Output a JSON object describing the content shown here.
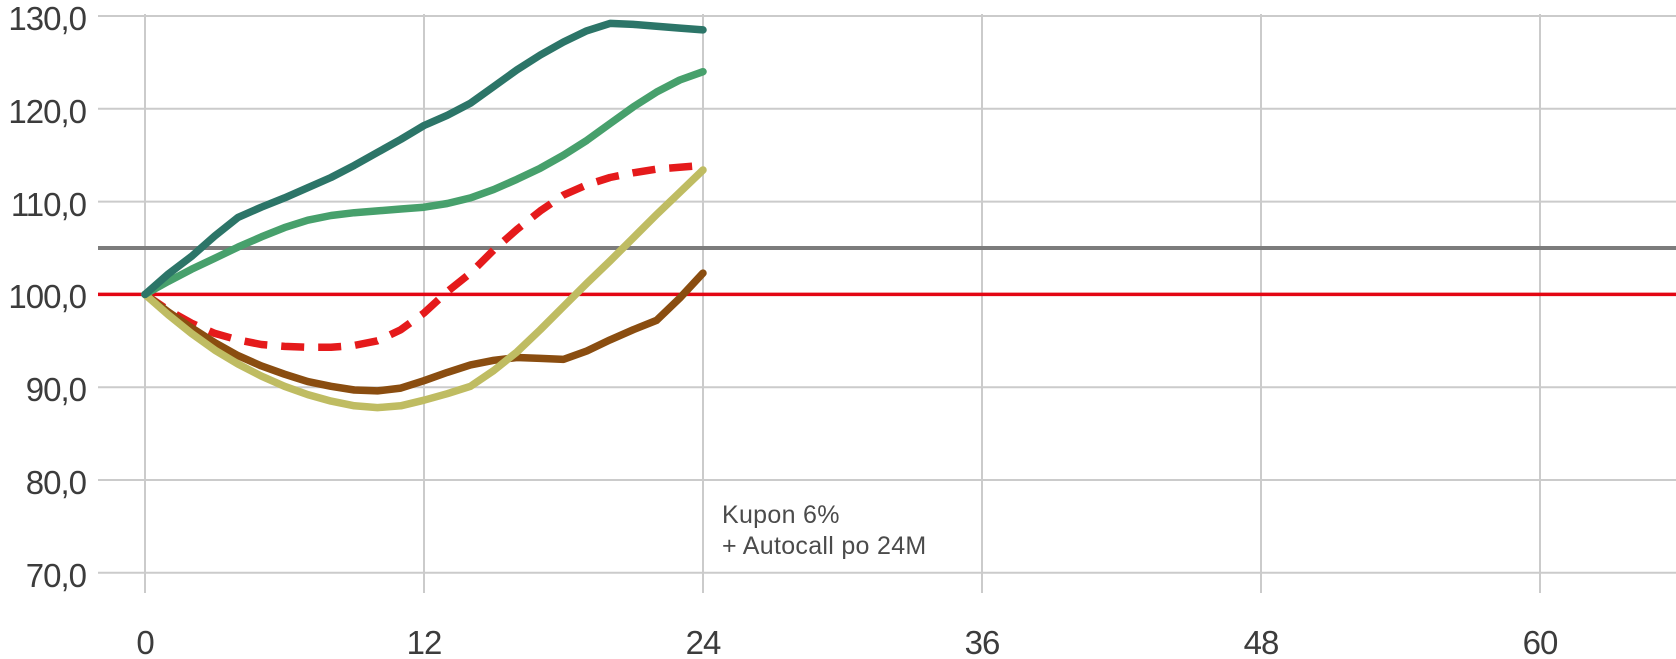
{
  "chart_data": {
    "type": "line",
    "title": "",
    "xlabel": "",
    "ylabel": "",
    "legend": "none",
    "grid": "on",
    "grid_color": "#cbcbcb",
    "xlim": [
      0,
      66
    ],
    "ylim": [
      70,
      130
    ],
    "x": [
      0,
      1,
      2,
      3,
      4,
      5,
      6,
      7,
      8,
      9,
      10,
      11,
      12,
      13,
      14,
      15,
      16,
      17,
      18,
      19,
      20,
      21,
      22,
      23,
      24
    ],
    "series": [
      {
        "id": "red-dashed",
        "color": "#e51a1b",
        "style": "dashed",
        "values": [
          100,
          98.3,
          96.9,
          95.8,
          95.1,
          94.6,
          94.4,
          94.3,
          94.3,
          94.5,
          95.0,
          96.2,
          98.0,
          100.3,
          102.3,
          104.8,
          107.0,
          109.0,
          110.7,
          111.8,
          112.6,
          113.1,
          113.5,
          113.7,
          113.9
        ]
      },
      {
        "id": "brown",
        "color": "#8a4d10",
        "style": "solid",
        "values": [
          100,
          98.1,
          96.4,
          94.8,
          93.4,
          92.3,
          91.4,
          90.6,
          90.1,
          89.7,
          89.6,
          89.9,
          90.7,
          91.6,
          92.4,
          92.9,
          93.2,
          93.1,
          93.0,
          93.9,
          95.1,
          96.2,
          97.2,
          99.6,
          102.3
        ]
      },
      {
        "id": "olive",
        "color": "#bfbc62",
        "style": "solid",
        "values": [
          100,
          97.8,
          95.8,
          94.0,
          92.5,
          91.2,
          90.1,
          89.2,
          88.5,
          88.0,
          87.8,
          88.0,
          88.6,
          89.3,
          90.1,
          91.8,
          93.8,
          96.2,
          98.7,
          101.2,
          103.6,
          106.1,
          108.6,
          111.0,
          113.4
        ]
      },
      {
        "id": "green",
        "color": "#47a06c",
        "style": "solid",
        "values": [
          100,
          101.4,
          102.7,
          103.9,
          105.1,
          106.2,
          107.2,
          108.0,
          108.5,
          108.8,
          109.0,
          109.2,
          109.4,
          109.8,
          110.4,
          111.3,
          112.4,
          113.6,
          115.0,
          116.6,
          118.4,
          120.2,
          121.8,
          123.1,
          124.0
        ]
      },
      {
        "id": "dark-teal",
        "color": "#2c7568",
        "style": "solid",
        "values": [
          100,
          102.2,
          104.1,
          106.3,
          108.3,
          109.4,
          110.4,
          111.5,
          112.6,
          113.9,
          115.3,
          116.7,
          118.2,
          119.3,
          120.6,
          122.4,
          124.2,
          125.8,
          127.2,
          128.4,
          129.2,
          129.1,
          128.9,
          128.7,
          128.5
        ]
      }
    ],
    "reference_lines": [
      {
        "y": 105,
        "color": "#7c7c7c",
        "width": 4
      },
      {
        "y": 100,
        "color": "#e30613",
        "width": 3.5
      }
    ],
    "y_gridline_values": [
      130,
      120,
      110,
      90,
      80,
      70
    ],
    "y_ticks": [
      {
        "label": "130,0",
        "value": 130
      },
      {
        "label": "120,0",
        "value": 120
      },
      {
        "label": "110,0",
        "value": 110
      },
      {
        "label": "100,0",
        "value": 100
      },
      {
        "label": "90,0",
        "value": 90
      },
      {
        "label": "80,0",
        "value": 80
      },
      {
        "label": "70,0",
        "value": 70
      }
    ],
    "x_ticks": [
      {
        "label": "0",
        "value": 0
      },
      {
        "label": "12",
        "value": 12
      },
      {
        "label": "24",
        "value": 24
      },
      {
        "label": "36",
        "value": 36
      },
      {
        "label": "48",
        "value": 48
      },
      {
        "label": "60",
        "value": 60
      }
    ],
    "annotation": {
      "line1": "Kupon 6%",
      "line2": "+ Autocall po 24M"
    }
  }
}
